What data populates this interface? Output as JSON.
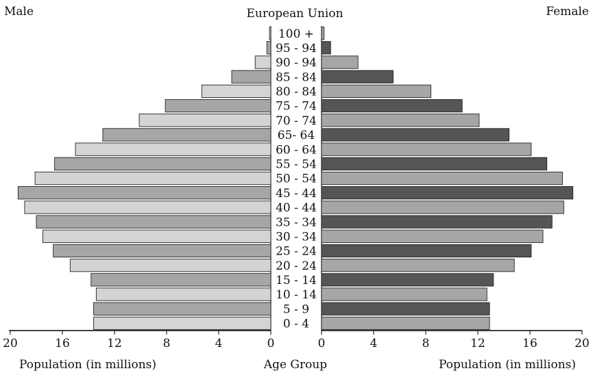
{
  "chart_data": {
    "type": "bar",
    "title": "European Union",
    "left_label": "Male",
    "right_label": "Female",
    "xlabel_left": "Population  (in millions)",
    "xlabel_center": "Age Group",
    "xlabel_right": "Population  (in millions)",
    "xlim": [
      0,
      20
    ],
    "x_ticks": [
      0,
      4,
      8,
      12,
      16,
      20
    ],
    "categories": [
      "100 +",
      "95 - 94",
      "90 - 94",
      "85 - 84",
      "80 - 84",
      "75 - 74",
      "70 - 74",
      "65- 64",
      "60 - 64",
      "55 - 54",
      "50 - 54",
      "45 - 44",
      "40 - 44",
      "35 - 34",
      "30 - 34",
      "25 - 24",
      "20 - 24",
      "15 - 14",
      "10 - 14",
      "5 - 9",
      "0 - 4"
    ],
    "series": [
      {
        "name": "Male",
        "values": [
          0.1,
          0.3,
          1.2,
          3.0,
          5.3,
          8.1,
          10.1,
          12.9,
          15.0,
          16.6,
          18.1,
          19.4,
          18.9,
          18.0,
          17.5,
          16.7,
          15.4,
          13.8,
          13.4,
          13.6,
          13.6
        ]
      },
      {
        "name": "Female",
        "values": [
          0.2,
          0.7,
          2.8,
          5.5,
          8.4,
          10.8,
          12.1,
          14.4,
          16.1,
          17.3,
          18.5,
          19.3,
          18.6,
          17.7,
          17.0,
          16.1,
          14.8,
          13.2,
          12.7,
          12.9,
          12.9
        ]
      }
    ],
    "bar_colors_male": [
      "#d4d4d4",
      "#a6a6a6"
    ],
    "bar_colors_female": [
      "#a6a6a6",
      "#555555"
    ]
  }
}
